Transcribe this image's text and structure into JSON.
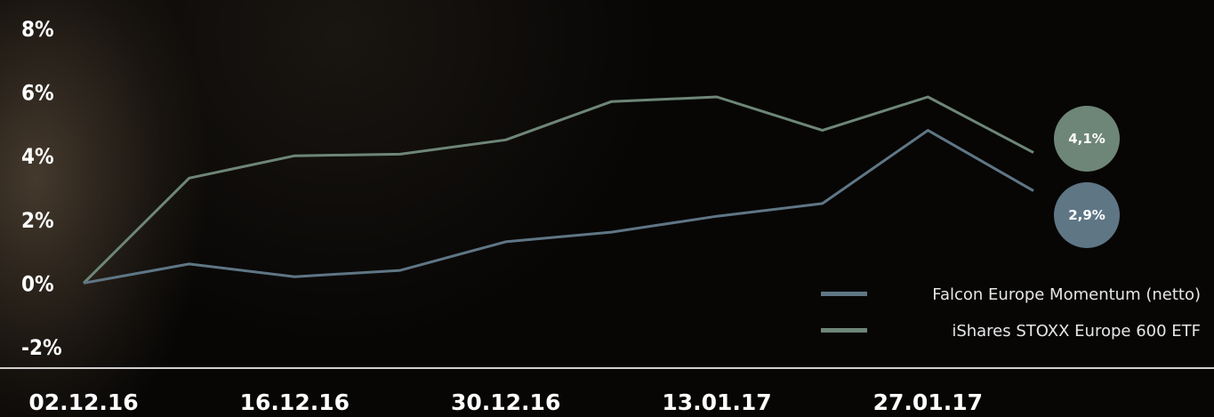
{
  "chart_data": {
    "type": "line",
    "x": [
      "02.12.16",
      "09.12.16",
      "16.12.16",
      "23.12.16",
      "30.12.16",
      "06.01.17",
      "13.01.17",
      "20.01.17",
      "27.01.17",
      "03.02.17"
    ],
    "x_tick_labels": [
      "02.12.16",
      "16.12.16",
      "30.12.16",
      "13.01.17",
      "27.01.17"
    ],
    "y_tick_labels": [
      "8%",
      "6%",
      "4%",
      "2%",
      "0%",
      "-2%"
    ],
    "ylim": [
      -2,
      8
    ],
    "series": [
      {
        "name": "Falcon Europe Momentum (netto)",
        "color": "#5f7685",
        "values": [
          0.0,
          0.6,
          0.2,
          0.4,
          1.3,
          1.6,
          2.1,
          2.5,
          4.8,
          2.9
        ],
        "end_label": "2,9%"
      },
      {
        "name": "iShares STOXX Europe 600 ETF",
        "color": "#6e8677",
        "values": [
          0.0,
          3.3,
          4.0,
          4.05,
          4.5,
          5.7,
          5.85,
          4.8,
          5.85,
          4.1
        ],
        "end_label": "4,1%"
      }
    ],
    "legend_position": "bottom-right",
    "grid": false
  }
}
